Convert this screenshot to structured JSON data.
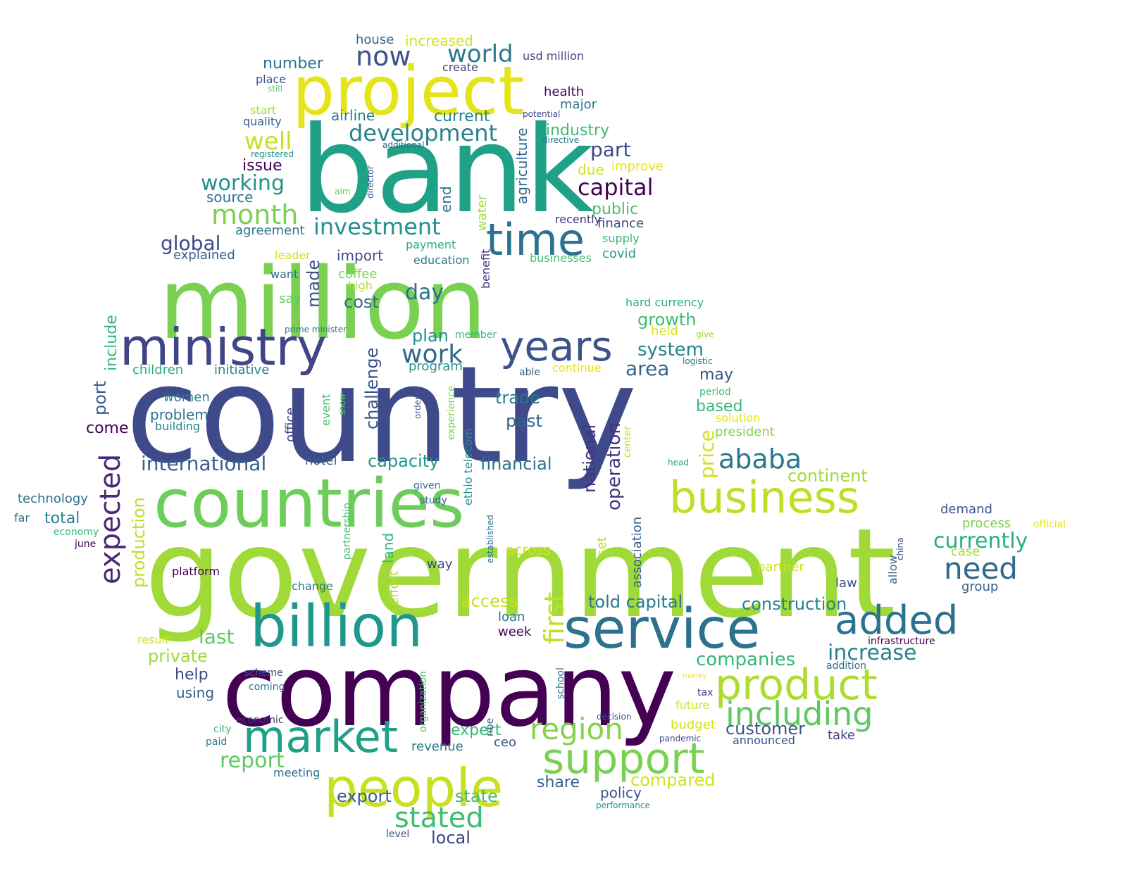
{
  "words": [
    {
      "text": "country",
      "color": "#3e4a89"
    },
    {
      "text": "government",
      "color": "#a0da39"
    },
    {
      "text": "million",
      "color": "#7ad151"
    },
    {
      "text": "bank",
      "color": "#1fa187"
    },
    {
      "text": "company",
      "color": "#440154"
    },
    {
      "text": "project",
      "color": "#e5e419"
    },
    {
      "text": "countries",
      "color": "#6ccd5a"
    },
    {
      "text": "billion",
      "color": "#1f988b"
    },
    {
      "text": "service",
      "color": "#2c728e"
    },
    {
      "text": "people",
      "color": "#c8e020"
    },
    {
      "text": "ministry",
      "color": "#414487"
    },
    {
      "text": "business",
      "color": "#bddf26"
    },
    {
      "text": "product",
      "color": "#addc30"
    },
    {
      "text": "support",
      "color": "#7ad151"
    },
    {
      "text": "market",
      "color": "#1fa187"
    },
    {
      "text": "time",
      "color": "#2c728e"
    },
    {
      "text": "years",
      "color": "#3b528b"
    },
    {
      "text": "added",
      "color": "#2c728e"
    },
    {
      "text": "including",
      "color": "#5ec962"
    },
    {
      "text": "need",
      "color": "#31688e"
    },
    {
      "text": "expected",
      "color": "#482878"
    },
    {
      "text": "region",
      "color": "#84d44b"
    },
    {
      "text": "ababa",
      "color": "#2a788e"
    },
    {
      "text": "first",
      "color": "#bddf26"
    },
    {
      "text": "stated",
      "color": "#3fbc73"
    },
    {
      "text": "now",
      "color": "#3b528b"
    },
    {
      "text": "world",
      "color": "#2a788e"
    },
    {
      "text": "month",
      "color": "#7ad151"
    },
    {
      "text": "work",
      "color": "#31688e"
    },
    {
      "text": "development",
      "color": "#26828e"
    },
    {
      "text": "investment",
      "color": "#21918c"
    },
    {
      "text": "capital",
      "color": "#440154"
    },
    {
      "text": "currently",
      "color": "#28ae80"
    },
    {
      "text": "increase",
      "color": "#26828e"
    },
    {
      "text": "report",
      "color": "#5ec962"
    },
    {
      "text": "international",
      "color": "#355f8d"
    },
    {
      "text": "operation",
      "color": "#46327e"
    },
    {
      "text": "well",
      "color": "#c8e020"
    },
    {
      "text": "working",
      "color": "#21918c"
    },
    {
      "text": "part",
      "color": "#3e4a89"
    },
    {
      "text": "global",
      "color": "#3e4a89"
    },
    {
      "text": "day",
      "color": "#2c728e"
    },
    {
      "text": "national",
      "color": "#46327e"
    },
    {
      "text": "price",
      "color": "#d2e21b"
    },
    {
      "text": "challenge",
      "color": "#3b528b"
    },
    {
      "text": "production",
      "color": "#bddf26"
    },
    {
      "text": "companies",
      "color": "#35b779"
    },
    {
      "text": "construction",
      "color": "#26828e"
    },
    {
      "text": "told capital",
      "color": "#2a788e"
    },
    {
      "text": "customer",
      "color": "#3b528b"
    },
    {
      "text": "system",
      "color": "#26828e"
    },
    {
      "text": "growth",
      "color": "#3fbc73"
    },
    {
      "text": "continent",
      "color": "#a0da39"
    },
    {
      "text": "compared",
      "color": "#d2e21b"
    },
    {
      "text": "capacity",
      "color": "#1f988b"
    },
    {
      "text": "financial",
      "color": "#2c728e"
    },
    {
      "text": "last",
      "color": "#5ec962"
    },
    {
      "text": "area",
      "color": "#31688e"
    },
    {
      "text": "trade",
      "color": "#2a788e"
    },
    {
      "text": "past",
      "color": "#31688e"
    },
    {
      "text": "port",
      "color": "#355f8d"
    },
    {
      "text": "include",
      "color": "#35b779"
    },
    {
      "text": "plan",
      "color": "#21918c"
    },
    {
      "text": "private",
      "color": "#a0da39"
    },
    {
      "text": "public",
      "color": "#4ac16d"
    },
    {
      "text": "access",
      "color": "#c8e020"
    },
    {
      "text": "made",
      "color": "#3b528b"
    },
    {
      "text": "export",
      "color": "#355f8d"
    },
    {
      "text": "state",
      "color": "#3fbc73"
    },
    {
      "text": "local",
      "color": "#414487"
    },
    {
      "text": "number",
      "color": "#2c728e"
    },
    {
      "text": "cost",
      "color": "#31688e"
    },
    {
      "text": "total",
      "color": "#26828e"
    },
    {
      "text": "current",
      "color": "#26828e"
    },
    {
      "text": "may",
      "color": "#3b528b"
    },
    {
      "text": "based",
      "color": "#35b779"
    },
    {
      "text": "industry",
      "color": "#3fbc73"
    },
    {
      "text": "come",
      "color": "#440154"
    },
    {
      "text": "help",
      "color": "#3e4a89"
    },
    {
      "text": "issue",
      "color": "#440154"
    },
    {
      "text": "agriculture",
      "color": "#31688e"
    },
    {
      "text": "end",
      "color": "#2c728e"
    },
    {
      "text": "share",
      "color": "#355f8d"
    },
    {
      "text": "expert",
      "color": "#35b779"
    },
    {
      "text": "policy",
      "color": "#3b528b"
    },
    {
      "text": "across",
      "color": "#d2e21b"
    },
    {
      "text": "health",
      "color": "#440154"
    },
    {
      "text": "major",
      "color": "#2a788e"
    },
    {
      "text": "import",
      "color": "#3e4a89"
    },
    {
      "text": "coffee",
      "color": "#7ad151"
    },
    {
      "text": "water",
      "color": "#a0da39"
    },
    {
      "text": "airline",
      "color": "#2a788e"
    },
    {
      "text": "house",
      "color": "#355f8d"
    },
    {
      "text": "increased",
      "color": "#d2e21b"
    },
    {
      "text": "usd million",
      "color": "#414487"
    },
    {
      "text": "create",
      "color": "#414487"
    },
    {
      "text": "place",
      "color": "#3b528b"
    },
    {
      "text": "still",
      "color": "#5ec962"
    },
    {
      "text": "start",
      "color": "#a0da39"
    },
    {
      "text": "quality",
      "color": "#355f8d"
    },
    {
      "text": "potential",
      "color": "#3e4a89"
    },
    {
      "text": "additional",
      "color": "#31688e"
    },
    {
      "text": "directive",
      "color": "#2a788e"
    },
    {
      "text": "registered",
      "color": "#21918c"
    },
    {
      "text": "director",
      "color": "#3b528b"
    },
    {
      "text": "aim",
      "color": "#5ec962"
    },
    {
      "text": "improve",
      "color": "#e5e419"
    },
    {
      "text": "due",
      "color": "#d2e21b"
    },
    {
      "text": "source",
      "color": "#2c728e"
    },
    {
      "text": "recently",
      "color": "#46327e"
    },
    {
      "text": "finance",
      "color": "#3e4a89"
    },
    {
      "text": "agreement",
      "color": "#2a788e"
    },
    {
      "text": "supply",
      "color": "#35b779"
    },
    {
      "text": "payment",
      "color": "#28ae80"
    },
    {
      "text": "covid",
      "color": "#1fa187"
    },
    {
      "text": "explained",
      "color": "#355f8d"
    },
    {
      "text": "leader",
      "color": "#d2e21b"
    },
    {
      "text": "education",
      "color": "#2a788e"
    },
    {
      "text": "benefit",
      "color": "#46327e"
    },
    {
      "text": "businesses",
      "color": "#4ac16d"
    },
    {
      "text": "want",
      "color": "#31688e"
    },
    {
      "text": "high",
      "color": "#b5de2b"
    },
    {
      "text": "say",
      "color": "#5ec962"
    },
    {
      "text": "hard currency",
      "color": "#28ae80"
    },
    {
      "text": "held",
      "color": "#d2e21b"
    },
    {
      "text": "give",
      "color": "#a0da39"
    },
    {
      "text": "prime minister",
      "color": "#2a788e"
    },
    {
      "text": "member",
      "color": "#35b779"
    },
    {
      "text": "logistic",
      "color": "#2a788e"
    },
    {
      "text": "children",
      "color": "#28ae80"
    },
    {
      "text": "initiative",
      "color": "#26828e"
    },
    {
      "text": "program",
      "color": "#21918c"
    },
    {
      "text": "able",
      "color": "#355f8d"
    },
    {
      "text": "continue",
      "color": "#e5e419"
    },
    {
      "text": "period",
      "color": "#3fbc73"
    },
    {
      "text": "women",
      "color": "#26828e"
    },
    {
      "text": "event",
      "color": "#4ac16d"
    },
    {
      "text": "show",
      "color": "#5ec962"
    },
    {
      "text": "order",
      "color": "#3b528b"
    },
    {
      "text": "experience",
      "color": "#7ad151"
    },
    {
      "text": "solution",
      "color": "#e5e419"
    },
    {
      "text": "president",
      "color": "#84d44b"
    },
    {
      "text": "problem",
      "color": "#2c728e"
    },
    {
      "text": "office",
      "color": "#414487"
    },
    {
      "text": "building",
      "color": "#26828e"
    },
    {
      "text": "center",
      "color": "#b5de2b"
    },
    {
      "text": "head",
      "color": "#1fa187"
    },
    {
      "text": "hotel",
      "color": "#355f8d"
    },
    {
      "text": "ethio telecom",
      "color": "#21918c"
    },
    {
      "text": "technology",
      "color": "#2c728e"
    },
    {
      "text": "given",
      "color": "#2a788e"
    },
    {
      "text": "study",
      "color": "#355f8d"
    },
    {
      "text": "partnership",
      "color": "#4ac16d"
    },
    {
      "text": "established",
      "color": "#2c728e"
    },
    {
      "text": "association",
      "color": "#355f8d"
    },
    {
      "text": "demand",
      "color": "#3b528b"
    },
    {
      "text": "far",
      "color": "#2c728e"
    },
    {
      "text": "economy",
      "color": "#35b779"
    },
    {
      "text": "june",
      "color": "#440154"
    },
    {
      "text": "process",
      "color": "#7ad151"
    },
    {
      "text": "official",
      "color": "#e5e419"
    },
    {
      "text": "case",
      "color": "#a0da39"
    },
    {
      "text": "allow",
      "color": "#31688e"
    },
    {
      "text": "china",
      "color": "#3e4a89"
    },
    {
      "text": "group",
      "color": "#355f8d"
    },
    {
      "text": "land",
      "color": "#35b779"
    },
    {
      "text": "way",
      "color": "#3e4a89"
    },
    {
      "text": "set",
      "color": "#b5de2b"
    },
    {
      "text": "partner",
      "color": "#d2e21b"
    },
    {
      "text": "platform",
      "color": "#440154"
    },
    {
      "text": "law",
      "color": "#3b528b"
    },
    {
      "text": "change",
      "color": "#2a788e"
    },
    {
      "text": "effort",
      "color": "#b5de2b"
    },
    {
      "text": "loan",
      "color": "#2c728e"
    },
    {
      "text": "week",
      "color": "#440154"
    },
    {
      "text": "result",
      "color": "#d2e21b"
    },
    {
      "text": "infrastructure",
      "color": "#440154"
    },
    {
      "text": "addition",
      "color": "#31688e"
    },
    {
      "text": "scheme",
      "color": "#3b528b"
    },
    {
      "text": "coming",
      "color": "#2c728e"
    },
    {
      "text": "organization",
      "color": "#4ac16d"
    },
    {
      "text": "school",
      "color": "#2c728e"
    },
    {
      "text": "money",
      "color": "#e5e419"
    },
    {
      "text": "using",
      "color": "#355f8d"
    },
    {
      "text": "tax",
      "color": "#414487"
    },
    {
      "text": "future",
      "color": "#d2e21b"
    },
    {
      "text": "economic",
      "color": "#46327e"
    },
    {
      "text": "decision",
      "color": "#3b528b"
    },
    {
      "text": "nbe",
      "color": "#355f8d"
    },
    {
      "text": "city",
      "color": "#35b779"
    },
    {
      "text": "budget",
      "color": "#d2e21b"
    },
    {
      "text": "paid",
      "color": "#2a788e"
    },
    {
      "text": "revenue",
      "color": "#2a788e"
    },
    {
      "text": "ceo",
      "color": "#3b528b"
    },
    {
      "text": "pandemic",
      "color": "#3e4a89"
    },
    {
      "text": "announced",
      "color": "#3b528b"
    },
    {
      "text": "take",
      "color": "#414487"
    },
    {
      "text": "meeting",
      "color": "#2c728e"
    },
    {
      "text": "performance",
      "color": "#21918c"
    },
    {
      "text": "level",
      "color": "#3b528b"
    }
  ]
}
